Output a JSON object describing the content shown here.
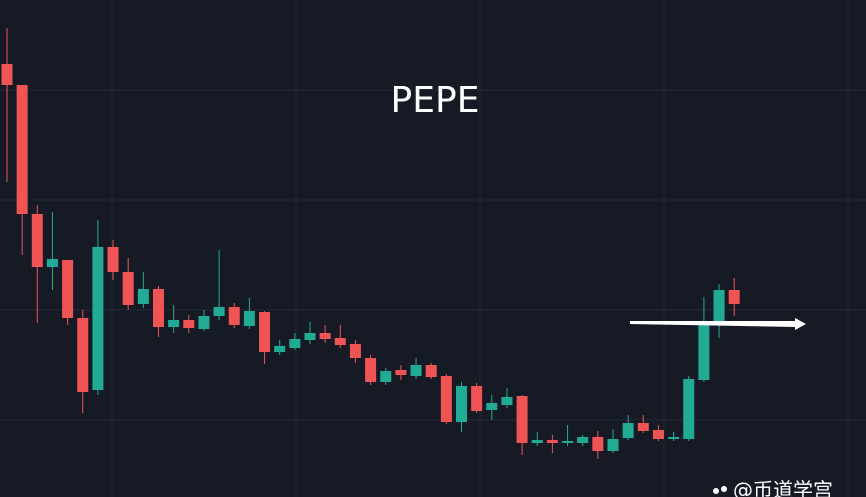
{
  "chart_data": {
    "type": "candlestick",
    "title": "PEPE",
    "watermark": "@币道学宫",
    "ylim": [
      0,
      497
    ],
    "up_color": "#22ab94",
    "down_color": "#f05454",
    "series": [
      {
        "open": [
          433,
          412,
          283,
          230,
          237,
          179,
          107,
          250,
          225,
          193,
          208,
          170,
          177,
          168,
          181,
          190,
          171,
          185,
          145,
          149,
          157,
          164,
          159,
          153,
          139,
          115,
          127,
          121,
          132,
          121,
          75,
          111,
          87,
          92,
          101,
          54,
          57,
          54,
          54,
          60,
          46,
          59,
          74,
          67,
          58,
          58,
          117,
          174,
          207
        ],
        "high": [
          469,
          412,
          292,
          285,
          237,
          187,
          277,
          257,
          239,
          225,
          211,
          192,
          182,
          187,
          247,
          194,
          199,
          186,
          157,
          164,
          175,
          172,
          172,
          157,
          142,
          129,
          132,
          139,
          134,
          123,
          115,
          114,
          102,
          109,
          102,
          65,
          62,
          72,
          62,
          66,
          68,
          82,
          82,
          72,
          65,
          121,
          200,
          213,
          219
        ],
        "low": [
          315,
          242,
          174,
          207,
          172,
          84,
          102,
          217,
          187,
          189,
          160,
          164,
          164,
          166,
          177,
          169,
          168,
          133,
          142,
          147,
          153,
          154,
          149,
          134,
          112,
          112,
          117,
          118,
          118,
          73,
          65,
          84,
          77,
          89,
          42,
          51,
          44,
          51,
          51,
          38,
          44,
          57,
          64,
          56,
          56,
          56,
          115,
          159,
          181
        ],
        "close": [
          412,
          283,
          230,
          238,
          179,
          105,
          250,
          225,
          192,
          208,
          170,
          177,
          169,
          181,
          190,
          172,
          186,
          145,
          151,
          158,
          164,
          158,
          152,
          139,
          115,
          126,
          122,
          132,
          120,
          75,
          111,
          86,
          94,
          100,
          54,
          57,
          54,
          56,
          60,
          46,
          58,
          74,
          66,
          58,
          60,
          118,
          174,
          207,
          193
        ]
      }
    ]
  }
}
